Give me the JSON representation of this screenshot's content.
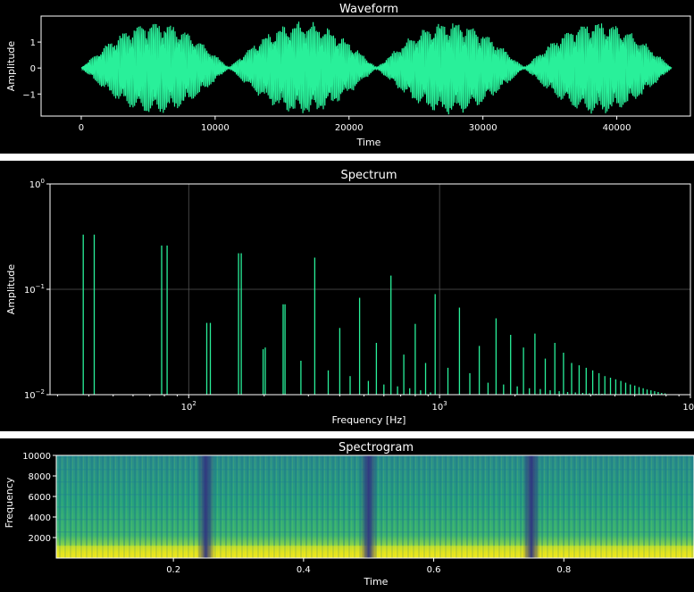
{
  "chart_data": [
    {
      "type": "line",
      "title": "Waveform",
      "xlabel": "Time",
      "ylabel": "Amplitude",
      "xlim": [
        -3000,
        45500
      ],
      "ylim": [
        -1.85,
        2.0
      ],
      "xticks": [
        0,
        10000,
        20000,
        30000,
        40000
      ],
      "xtick_labels": [
        "0",
        "10000",
        "20000",
        "30000",
        "40000"
      ],
      "yticks": [
        1,
        0,
        -1
      ],
      "ytick_labels": [
        "1",
        "0",
        "−1"
      ],
      "signal": {
        "samples": 44100,
        "peak_amplitude": 1.75,
        "envelope_cycles": 4,
        "envelope_min_sample": [
          0,
          11025,
          22050,
          33075,
          44100
        ]
      },
      "line_color": "#29f09a",
      "grid": false
    },
    {
      "type": "line",
      "title": "Spectrum",
      "xlabel": "Frequency [Hz]",
      "ylabel": "Amplitude",
      "xscale": "log",
      "yscale": "log",
      "xlim": [
        28,
        10000
      ],
      "ylim": [
        0.01,
        1
      ],
      "xtick_labels": [
        {
          "base": "10",
          "exp": "2",
          "value": 100
        },
        {
          "base": "10",
          "exp": "3",
          "value": 1000
        },
        {
          "base": "10",
          "exp": "4",
          "value": 10000
        }
      ],
      "ytick_labels": [
        {
          "base": "10",
          "exp": "0",
          "value": 1
        },
        {
          "base": "10",
          "exp": "−1",
          "value": 0.1
        },
        {
          "base": "10",
          "exp": "−2",
          "value": 0.01
        }
      ],
      "grid": true,
      "line_color": "#29f09a",
      "peaks": [
        {
          "f": 38,
          "a": 0.33
        },
        {
          "f": 42,
          "a": 0.33
        },
        {
          "f": 78,
          "a": 0.26
        },
        {
          "f": 82,
          "a": 0.26
        },
        {
          "f": 118,
          "a": 0.048
        },
        {
          "f": 122,
          "a": 0.048
        },
        {
          "f": 158,
          "a": 0.22
        },
        {
          "f": 162,
          "a": 0.22
        },
        {
          "f": 198,
          "a": 0.027
        },
        {
          "f": 202,
          "a": 0.028
        },
        {
          "f": 238,
          "a": 0.072
        },
        {
          "f": 242,
          "a": 0.072
        },
        {
          "f": 280,
          "a": 0.021
        },
        {
          "f": 318,
          "a": 0.2
        },
        {
          "f": 360,
          "a": 0.017
        },
        {
          "f": 400,
          "a": 0.043
        },
        {
          "f": 440,
          "a": 0.015
        },
        {
          "f": 480,
          "a": 0.083
        },
        {
          "f": 520,
          "a": 0.0135
        },
        {
          "f": 560,
          "a": 0.031
        },
        {
          "f": 600,
          "a": 0.0125
        },
        {
          "f": 640,
          "a": 0.135
        },
        {
          "f": 680,
          "a": 0.012
        },
        {
          "f": 720,
          "a": 0.024
        },
        {
          "f": 760,
          "a": 0.0115
        },
        {
          "f": 800,
          "a": 0.047
        },
        {
          "f": 840,
          "a": 0.011
        },
        {
          "f": 880,
          "a": 0.02
        },
        {
          "f": 920,
          "a": 0.0105
        },
        {
          "f": 960,
          "a": 0.09
        },
        {
          "f": 1080,
          "a": 0.018
        },
        {
          "f": 1200,
          "a": 0.067
        },
        {
          "f": 1320,
          "a": 0.016
        },
        {
          "f": 1440,
          "a": 0.029
        },
        {
          "f": 1560,
          "a": 0.013
        },
        {
          "f": 1680,
          "a": 0.053
        },
        {
          "f": 1800,
          "a": 0.0125
        },
        {
          "f": 1920,
          "a": 0.037
        },
        {
          "f": 2040,
          "a": 0.012
        },
        {
          "f": 2160,
          "a": 0.028
        },
        {
          "f": 2280,
          "a": 0.0115
        },
        {
          "f": 2400,
          "a": 0.038
        },
        {
          "f": 2520,
          "a": 0.0113
        },
        {
          "f": 2640,
          "a": 0.022
        },
        {
          "f": 2760,
          "a": 0.011
        },
        {
          "f": 2880,
          "a": 0.031
        },
        {
          "f": 3000,
          "a": 0.0108
        },
        {
          "f": 3120,
          "a": 0.025
        },
        {
          "f": 3240,
          "a": 0.0106
        },
        {
          "f": 3360,
          "a": 0.02
        },
        {
          "f": 3480,
          "a": 0.0105
        },
        {
          "f": 3600,
          "a": 0.019
        },
        {
          "f": 3720,
          "a": 0.0104
        },
        {
          "f": 3840,
          "a": 0.018
        },
        {
          "f": 3960,
          "a": 0.0103
        },
        {
          "f": 4080,
          "a": 0.017
        },
        {
          "f": 4200,
          "a": 0.0102
        },
        {
          "f": 4320,
          "a": 0.016
        },
        {
          "f": 4440,
          "a": 0.0102
        },
        {
          "f": 4560,
          "a": 0.015
        },
        {
          "f": 4800,
          "a": 0.0145
        },
        {
          "f": 5040,
          "a": 0.014
        },
        {
          "f": 5280,
          "a": 0.0135
        },
        {
          "f": 5520,
          "a": 0.013
        },
        {
          "f": 5760,
          "a": 0.0125
        },
        {
          "f": 6000,
          "a": 0.0122
        },
        {
          "f": 6240,
          "a": 0.0118
        },
        {
          "f": 6480,
          "a": 0.0115
        },
        {
          "f": 6720,
          "a": 0.0112
        },
        {
          "f": 6960,
          "a": 0.011
        },
        {
          "f": 7200,
          "a": 0.0108
        },
        {
          "f": 7440,
          "a": 0.0106
        },
        {
          "f": 7680,
          "a": 0.0104
        },
        {
          "f": 7920,
          "a": 0.0103
        }
      ]
    },
    {
      "type": "heatmap",
      "title": "Spectrogram",
      "xlabel": "Time",
      "ylabel": "Frequency",
      "xlim": [
        0.02,
        1.0
      ],
      "ylim": [
        0,
        10000
      ],
      "xticks": [
        0.2,
        0.4,
        0.6,
        0.8
      ],
      "xtick_labels": [
        "0.2",
        "0.4",
        "0.6",
        "0.8"
      ],
      "yticks": [
        10000,
        8000,
        6000,
        4000,
        2000
      ],
      "ytick_labels": [
        "10000",
        "8000",
        "6000",
        "4000",
        "2000"
      ],
      "colormap": "viridis",
      "dark_bands_time": [
        0.25,
        0.5,
        0.75
      ],
      "bright_low_band_hz": [
        0,
        1200
      ]
    }
  ]
}
